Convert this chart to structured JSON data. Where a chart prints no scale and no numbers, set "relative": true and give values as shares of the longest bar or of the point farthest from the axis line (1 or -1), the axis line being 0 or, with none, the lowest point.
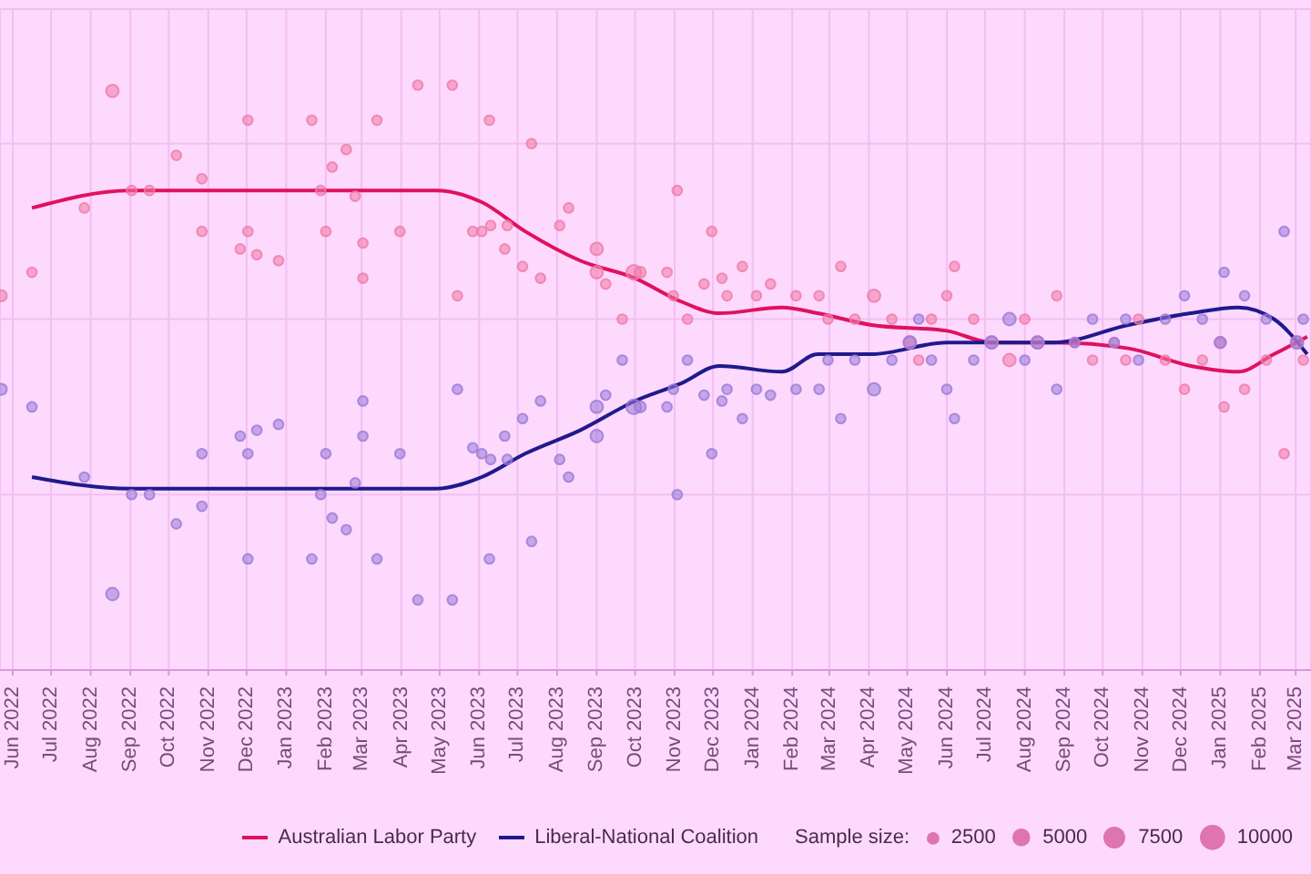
{
  "chart_data": {
    "type": "line",
    "relative": true,
    "legend": "bottom",
    "grid": true,
    "legend_title": "Sample size:",
    "size_legend": [
      2500,
      5000,
      7500,
      10000
    ],
    "xlim": [
      "2022-05-22",
      "2025-03-13"
    ],
    "xticks": [
      {
        "value": "2022-06",
        "label": "Jun 2022"
      },
      {
        "value": "2022-07",
        "label": "Jul 2022"
      },
      {
        "value": "2022-08",
        "label": "Aug 2022"
      },
      {
        "value": "2022-09",
        "label": "Sep 2022"
      },
      {
        "value": "2022-10",
        "label": "Oct 2022"
      },
      {
        "value": "2022-11",
        "label": "Nov 2022"
      },
      {
        "value": "2022-12",
        "label": "Dec 2022"
      },
      {
        "value": "2023-01",
        "label": "Jan 2023"
      },
      {
        "value": "2023-02",
        "label": "Feb 2023"
      },
      {
        "value": "2023-03",
        "label": "Mar 2023"
      },
      {
        "value": "2023-04",
        "label": "Apr 2023"
      },
      {
        "value": "2023-05",
        "label": "May 2023"
      },
      {
        "value": "2023-06",
        "label": "Jun 2023"
      },
      {
        "value": "2023-07",
        "label": "Jul 2023"
      },
      {
        "value": "2023-08",
        "label": "Aug 2023"
      },
      {
        "value": "2023-09",
        "label": "Sep 2023"
      },
      {
        "value": "2023-10",
        "label": "Oct 2023"
      },
      {
        "value": "2023-11",
        "label": "Nov 2023"
      },
      {
        "value": "2023-12",
        "label": "Dec 2023"
      },
      {
        "value": "2024-01",
        "label": "Jan 2024"
      },
      {
        "value": "2024-02",
        "label": "Feb 2024"
      },
      {
        "value": "2024-03",
        "label": "Mar 2024"
      },
      {
        "value": "2024-04",
        "label": "Apr 2024"
      },
      {
        "value": "2024-05",
        "label": "May 2024"
      },
      {
        "value": "2024-06",
        "label": "Jun 2024"
      },
      {
        "value": "2024-07",
        "label": "Jul 2024"
      },
      {
        "value": "2024-08",
        "label": "Aug 2024"
      },
      {
        "value": "2024-09",
        "label": "Sep 2024"
      },
      {
        "value": "2024-10",
        "label": "Oct 2024"
      },
      {
        "value": "2024-11",
        "label": "Nov 2024"
      },
      {
        "value": "2024-12",
        "label": "Dec 2024"
      },
      {
        "value": "2025-01",
        "label": "Jan 2025"
      },
      {
        "value": "2025-02",
        "label": "Feb 2025"
      },
      {
        "value": "2025-03",
        "label": "Mar 2025"
      }
    ],
    "series": [
      {
        "type": "bubble",
        "color": "#f07aa8",
        "x": [
          "2022-05-23",
          "2022-06-16",
          "2022-07-27",
          "2022-08-18",
          "2022-09-02",
          "2022-09-16",
          "2022-10-07",
          "2022-10-27",
          "2022-10-27",
          "2022-11-26",
          "2022-12-02",
          "2022-12-02",
          "2022-12-09",
          "2022-12-26",
          "2023-01-21",
          "2023-01-28",
          "2023-02-01",
          "2023-02-06",
          "2023-02-17",
          "2023-02-24",
          "2023-03-02",
          "2023-03-02",
          "2023-03-13",
          "2023-03-31",
          "2023-04-14",
          "2023-05-11",
          "2023-05-15",
          "2023-05-27",
          "2023-06-03",
          "2023-06-09",
          "2023-06-10",
          "2023-06-21",
          "2023-06-23",
          "2023-07-05",
          "2023-07-12",
          "2023-07-19",
          "2023-08-03",
          "2023-08-10",
          "2023-09-01",
          "2023-09-01",
          "2023-09-08",
          "2023-09-21",
          "2023-09-30",
          "2023-10-05",
          "2023-10-26",
          "2023-10-31",
          "2023-11-03",
          "2023-11-11",
          "2023-11-24",
          "2023-11-30",
          "2023-12-08",
          "2023-12-12",
          "2023-12-24",
          "2024-01-04",
          "2024-01-15",
          "2024-02-04",
          "2024-02-22",
          "2024-02-29",
          "2024-03-10",
          "2024-03-21",
          "2024-04-05",
          "2024-04-19",
          "2024-05-03",
          "2024-05-10",
          "2024-05-20",
          "2024-06-01",
          "2024-06-07",
          "2024-06-22",
          "2024-07-06",
          "2024-07-20",
          "2024-08-01",
          "2024-08-11",
          "2024-08-26",
          "2024-09-09",
          "2024-09-23",
          "2024-10-10",
          "2024-10-19",
          "2024-10-29",
          "2024-11-19",
          "2024-12-04",
          "2024-12-18",
          "2025-01-01",
          "2025-01-04",
          "2025-01-20",
          "2025-02-06",
          "2025-02-20",
          "2025-03-02",
          "2025-03-07"
        ],
        "values": [
          0.64,
          0.68,
          0.79,
          0.99,
          0.82,
          0.82,
          0.88,
          0.84,
          0.75,
          0.72,
          0.94,
          0.75,
          0.71,
          0.7,
          0.94,
          0.82,
          0.75,
          0.86,
          0.89,
          0.81,
          0.73,
          0.67,
          0.94,
          0.75,
          1.0,
          1.0,
          0.64,
          0.75,
          0.75,
          0.94,
          0.76,
          0.72,
          0.76,
          0.69,
          0.9,
          0.67,
          0.76,
          0.79,
          0.72,
          0.68,
          0.66,
          0.6,
          0.68,
          0.68,
          0.68,
          0.64,
          0.82,
          0.6,
          0.66,
          0.75,
          0.67,
          0.64,
          0.69,
          0.64,
          0.66,
          0.64,
          0.64,
          0.6,
          0.69,
          0.6,
          0.64,
          0.6,
          0.56,
          0.53,
          0.6,
          0.64,
          0.69,
          0.6,
          0.56,
          0.53,
          0.6,
          0.56,
          0.64,
          0.56,
          0.53,
          0.56,
          0.53,
          0.6,
          0.53,
          0.48,
          0.53,
          0.56,
          0.45,
          0.48,
          0.53,
          0.37,
          0.56,
          0.53
        ],
        "sizes": [
          2000,
          1500,
          1500,
          2500,
          1500,
          1500,
          1500,
          1500,
          1500,
          1500,
          1500,
          1500,
          1500,
          1500,
          1500,
          1500,
          1500,
          1500,
          1500,
          1500,
          1500,
          1500,
          1500,
          1500,
          1500,
          1500,
          1500,
          1500,
          1500,
          1500,
          1500,
          1500,
          1500,
          1500,
          1500,
          1500,
          1500,
          1500,
          2500,
          2500,
          1500,
          1500,
          3500,
          2000,
          1500,
          1500,
          1500,
          1500,
          1500,
          1500,
          1500,
          1500,
          1500,
          1500,
          1500,
          1500,
          1500,
          1500,
          1500,
          1500,
          2500,
          1500,
          2500,
          1500,
          1500,
          1500,
          1500,
          1500,
          2500,
          2500,
          1500,
          2500,
          1500,
          1500,
          1500,
          1500,
          1500,
          1500,
          1500,
          1500,
          1500,
          2000,
          1500,
          1500,
          1500,
          1500,
          2500,
          1500
        ]
      },
      {
        "type": "bubble",
        "color": "#9a7ad8",
        "x": [
          "2022-05-23",
          "2022-06-16",
          "2022-07-27",
          "2022-08-18",
          "2022-09-02",
          "2022-09-16",
          "2022-10-07",
          "2022-10-27",
          "2022-10-27",
          "2022-11-26",
          "2022-12-02",
          "2022-12-02",
          "2022-12-09",
          "2022-12-26",
          "2023-01-21",
          "2023-01-28",
          "2023-02-01",
          "2023-02-06",
          "2023-02-17",
          "2023-02-24",
          "2023-03-02",
          "2023-03-02",
          "2023-03-13",
          "2023-03-31",
          "2023-04-14",
          "2023-05-11",
          "2023-05-15",
          "2023-05-27",
          "2023-06-03",
          "2023-06-09",
          "2023-06-10",
          "2023-06-21",
          "2023-06-23",
          "2023-07-05",
          "2023-07-12",
          "2023-07-19",
          "2023-08-03",
          "2023-08-10",
          "2023-09-01",
          "2023-09-01",
          "2023-09-08",
          "2023-09-21",
          "2023-09-30",
          "2023-10-05",
          "2023-10-26",
          "2023-10-31",
          "2023-11-03",
          "2023-11-11",
          "2023-11-24",
          "2023-11-30",
          "2023-12-08",
          "2023-12-12",
          "2023-12-24",
          "2024-01-04",
          "2024-01-15",
          "2024-02-04",
          "2024-02-22",
          "2024-02-29",
          "2024-03-10",
          "2024-03-21",
          "2024-04-05",
          "2024-04-19",
          "2024-05-03",
          "2024-05-10",
          "2024-05-20",
          "2024-06-01",
          "2024-06-07",
          "2024-06-22",
          "2024-07-06",
          "2024-07-20",
          "2024-08-01",
          "2024-08-11",
          "2024-08-26",
          "2024-09-09",
          "2024-09-23",
          "2024-10-10",
          "2024-10-19",
          "2024-10-29",
          "2024-11-19",
          "2024-12-04",
          "2024-12-18",
          "2025-01-01",
          "2025-01-04",
          "2025-01-20",
          "2025-02-06",
          "2025-02-20",
          "2025-03-02",
          "2025-03-07"
        ],
        "values": [
          0.48,
          0.45,
          0.33,
          0.13,
          0.3,
          0.3,
          0.25,
          0.28,
          0.37,
          0.4,
          0.19,
          0.37,
          0.41,
          0.42,
          0.19,
          0.3,
          0.37,
          0.26,
          0.24,
          0.32,
          0.4,
          0.46,
          0.19,
          0.37,
          0.12,
          0.12,
          0.48,
          0.38,
          0.37,
          0.19,
          0.36,
          0.4,
          0.36,
          0.43,
          0.22,
          0.46,
          0.36,
          0.33,
          0.4,
          0.45,
          0.47,
          0.53,
          0.45,
          0.45,
          0.45,
          0.48,
          0.3,
          0.53,
          0.47,
          0.37,
          0.46,
          0.48,
          0.43,
          0.48,
          0.47,
          0.48,
          0.48,
          0.53,
          0.43,
          0.53,
          0.48,
          0.53,
          0.56,
          0.6,
          0.53,
          0.48,
          0.43,
          0.53,
          0.56,
          0.6,
          0.53,
          0.56,
          0.48,
          0.56,
          0.6,
          0.56,
          0.6,
          0.53,
          0.6,
          0.64,
          0.6,
          0.56,
          0.68,
          0.64,
          0.6,
          0.75,
          0.56,
          0.6
        ],
        "sizes": [
          2000,
          1500,
          1500,
          2500,
          1500,
          1500,
          1500,
          1500,
          1500,
          1500,
          1500,
          1500,
          1500,
          1500,
          1500,
          1500,
          1500,
          1500,
          1500,
          1500,
          1500,
          1500,
          1500,
          1500,
          1500,
          1500,
          1500,
          1500,
          1500,
          1500,
          1500,
          1500,
          1500,
          1500,
          1500,
          1500,
          1500,
          1500,
          2500,
          2500,
          1500,
          1500,
          3500,
          2000,
          1500,
          1500,
          1500,
          1500,
          1500,
          1500,
          1500,
          1500,
          1500,
          1500,
          1500,
          1500,
          1500,
          1500,
          1500,
          1500,
          2500,
          1500,
          2500,
          1500,
          1500,
          1500,
          1500,
          1500,
          2500,
          2500,
          1500,
          2500,
          1500,
          1500,
          1500,
          1500,
          1500,
          1500,
          1500,
          1500,
          1500,
          2000,
          1500,
          1500,
          1500,
          1500,
          2500,
          1500
        ]
      },
      {
        "name": "Australian Labor Party",
        "color": "#e0115f",
        "x": [
          "2022-06-16",
          "2022-09-01",
          "2022-11-01",
          "2023-01-06",
          "2023-03-22",
          "2023-04-28",
          "2023-06-03",
          "2023-07-07",
          "2023-08-19",
          "2023-10-01",
          "2023-11-06",
          "2023-12-06",
          "2024-01-24",
          "2024-02-21",
          "2024-04-03",
          "2024-06-01",
          "2024-07-06",
          "2024-08-24",
          "2024-10-21",
          "2024-12-09",
          "2025-01-15",
          "2025-02-12",
          "2025-03-10"
        ],
        "values": [
          0.79,
          0.82,
          0.82,
          0.82,
          0.82,
          0.82,
          0.8,
          0.75,
          0.7,
          0.67,
          0.63,
          0.61,
          0.62,
          0.61,
          0.59,
          0.58,
          0.56,
          0.56,
          0.55,
          0.52,
          0.51,
          0.54,
          0.57
        ]
      },
      {
        "name": "Liberal-National Coalition",
        "color": "#1f1a8c",
        "x": [
          "2022-06-16",
          "2022-09-01",
          "2022-11-01",
          "2023-01-06",
          "2023-03-22",
          "2023-04-28",
          "2023-06-03",
          "2023-07-07",
          "2023-08-19",
          "2023-10-01",
          "2023-11-06",
          "2023-12-06",
          "2024-01-24",
          "2024-02-21",
          "2024-04-03",
          "2024-06-01",
          "2024-07-06",
          "2024-08-24",
          "2024-10-21",
          "2024-12-09",
          "2025-01-15",
          "2025-02-12",
          "2025-03-10"
        ],
        "values": [
          0.33,
          0.31,
          0.31,
          0.31,
          0.31,
          0.31,
          0.33,
          0.37,
          0.41,
          0.46,
          0.49,
          0.52,
          0.51,
          0.54,
          0.54,
          0.56,
          0.56,
          0.56,
          0.59,
          0.61,
          0.62,
          0.6,
          0.54
        ]
      }
    ]
  }
}
